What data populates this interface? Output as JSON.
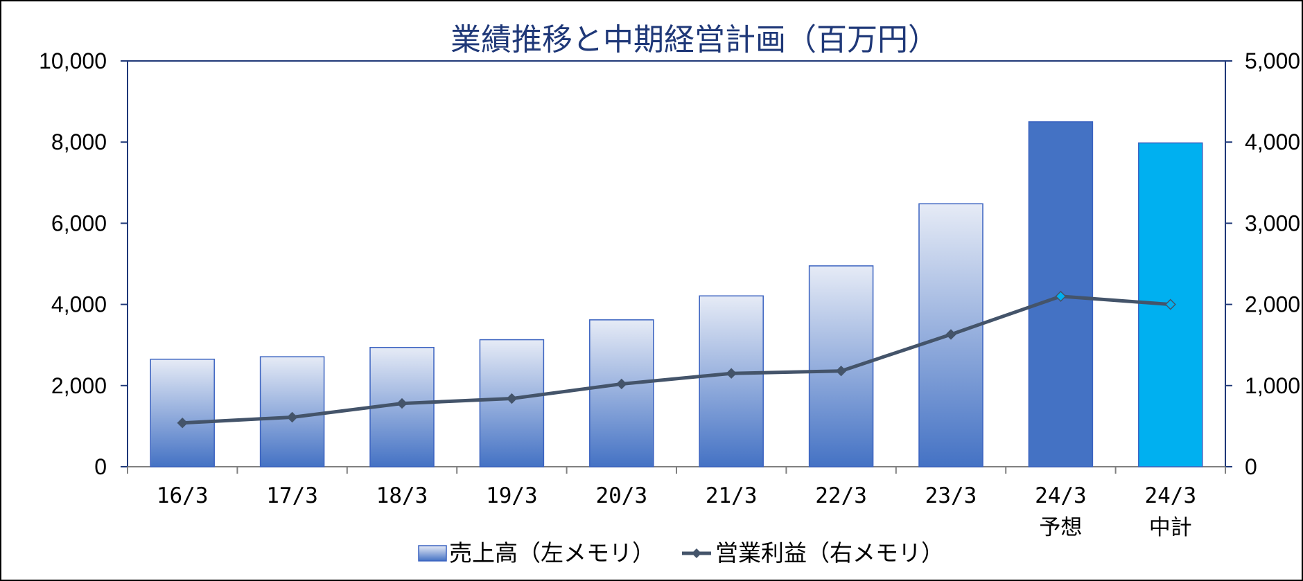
{
  "chart_data": {
    "type": "bar",
    "title": "業績推移と中期経営計画（百万円）",
    "categories": [
      "16/3",
      "17/3",
      "18/3",
      "19/3",
      "20/3",
      "21/3",
      "22/3",
      "23/3",
      "24/3\n予想",
      "24/3\n中計"
    ],
    "series": [
      {
        "name": "売上高（左メモリ）",
        "type": "bar",
        "axis": "left",
        "values": [
          2650,
          2710,
          2940,
          3130,
          3620,
          4210,
          4950,
          6480,
          8500,
          7980
        ],
        "bar_styles": [
          "gradient",
          "gradient",
          "gradient",
          "gradient",
          "gradient",
          "gradient",
          "gradient",
          "gradient",
          "solid-dark",
          "solid-light"
        ]
      },
      {
        "name": "営業利益（右メモリ）",
        "type": "line",
        "axis": "right",
        "values": [
          540,
          610,
          780,
          840,
          1020,
          1150,
          1180,
          1630,
          2100,
          2000
        ]
      }
    ],
    "y_left": {
      "ylim": [
        0,
        10000
      ],
      "ticks": [
        "0",
        "2,000",
        "4,000",
        "6,000",
        "8,000",
        "10,000"
      ]
    },
    "y_right": {
      "ylim": [
        0,
        5000
      ],
      "ticks": [
        "0",
        "1,000",
        "2,000",
        "3,000",
        "4,000",
        "5,000"
      ]
    },
    "grid": false,
    "legend": "bottom",
    "colors": {
      "axis": "#1f3878",
      "title": "#1f3878",
      "bar_gradient_top": "#e6ebf6",
      "bar_gradient_bottom": "#4472c4",
      "bar_border": "#3a62c0",
      "bar_solid_dark": "#4472c4",
      "bar_solid_light": "#00b0f0",
      "line": "#44546a",
      "marker_highlight": "#00b0f0"
    }
  }
}
